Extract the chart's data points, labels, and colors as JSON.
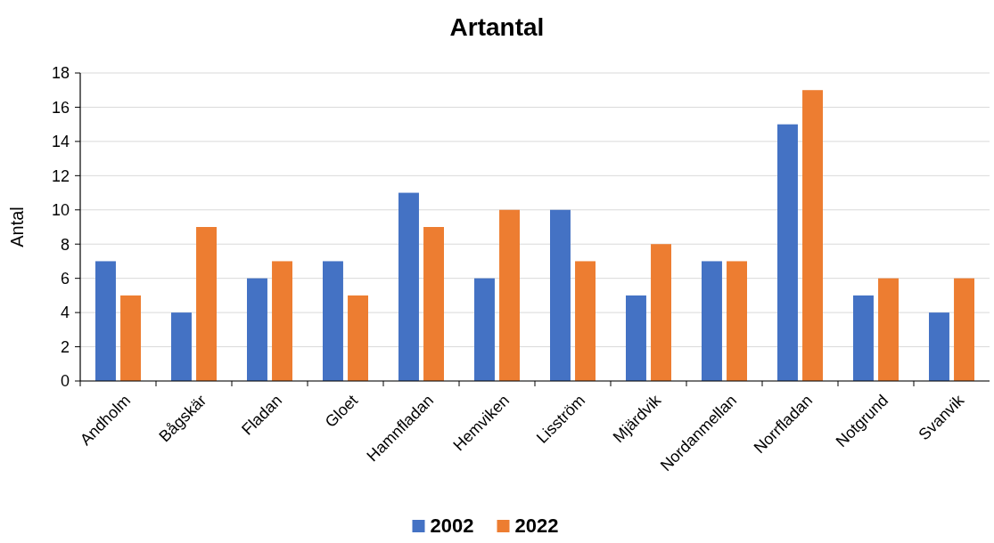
{
  "chart_data": {
    "type": "bar",
    "title": "Artantal",
    "ylabel": "Antal",
    "categories": [
      "Andholm",
      "Bågskär",
      "Fladan",
      "Gloet",
      "Hamnfladan",
      "Hemviken",
      "Lisström",
      "Mjärdvik",
      "Nordanmellan",
      "Norrfladan",
      "Notgrund",
      "Svanvik"
    ],
    "series": [
      {
        "name": "2002",
        "color": "#4472c4",
        "values": [
          7,
          4,
          6,
          7,
          11,
          6,
          10,
          5,
          7,
          15,
          5,
          4
        ]
      },
      {
        "name": "2022",
        "color": "#ed7d31",
        "values": [
          5,
          9,
          7,
          5,
          9,
          10,
          7,
          8,
          7,
          17,
          6,
          6
        ]
      }
    ],
    "ylim": [
      0,
      18
    ],
    "yticks": [
      0,
      2,
      4,
      6,
      8,
      10,
      12,
      14,
      16,
      18
    ],
    "grid": "y",
    "legend": "bottom"
  }
}
